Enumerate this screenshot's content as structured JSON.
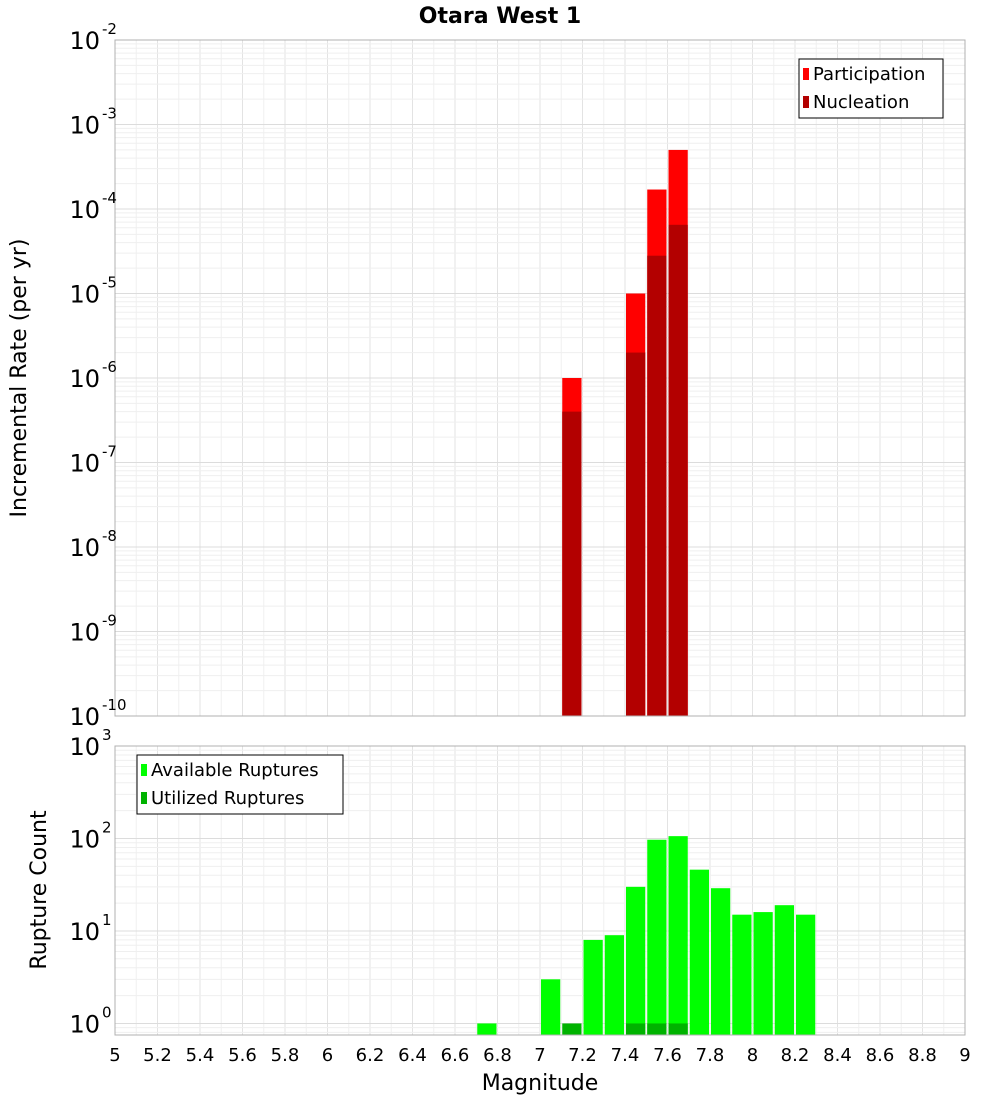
{
  "chart_data": [
    {
      "type": "bar",
      "title": "Otara West 1",
      "xlabel": "",
      "ylabel": "Incremental Rate (per yr)",
      "y_scale": "log",
      "ylim": [
        1e-10,
        0.01
      ],
      "xlim": [
        5,
        9
      ],
      "y_ticks": [
        {
          "base": "10",
          "exp": "-2"
        },
        {
          "base": "10",
          "exp": "-3"
        },
        {
          "base": "10",
          "exp": "-4"
        },
        {
          "base": "10",
          "exp": "-5"
        },
        {
          "base": "10",
          "exp": "-6"
        },
        {
          "base": "10",
          "exp": "-7"
        },
        {
          "base": "10",
          "exp": "-8"
        },
        {
          "base": "10",
          "exp": "-9"
        },
        {
          "base": "10",
          "exp": "-10"
        }
      ],
      "legend_position": "top-right",
      "grid": true,
      "bar_width": 0.1,
      "series": [
        {
          "name": "Participation",
          "color": "#ff0000",
          "x": [
            7.15,
            7.45,
            7.55,
            7.65
          ],
          "values": [
            1e-06,
            1e-05,
            0.00017,
            0.0005
          ]
        },
        {
          "name": "Nucleation",
          "color": "#b30000",
          "x": [
            7.15,
            7.45,
            7.55,
            7.65
          ],
          "values": [
            4e-07,
            2e-06,
            2.8e-05,
            6.5e-05
          ]
        }
      ]
    },
    {
      "type": "bar",
      "title": "",
      "xlabel": "Magnitude",
      "ylabel": "Rupture Count",
      "y_scale": "log",
      "ylim": [
        0.75,
        1000
      ],
      "xlim": [
        5,
        9
      ],
      "y_ticks": [
        {
          "base": "10",
          "exp": "3"
        },
        {
          "base": "10",
          "exp": "2"
        },
        {
          "base": "10",
          "exp": "1"
        },
        {
          "base": "10",
          "exp": "0"
        }
      ],
      "x_ticks": [
        "5",
        "5.2",
        "5.4",
        "5.6",
        "5.8",
        "6",
        "6.2",
        "6.4",
        "6.6",
        "6.8",
        "7",
        "7.2",
        "7.4",
        "7.6",
        "7.8",
        "8",
        "8.2",
        "8.4",
        "8.6",
        "8.8",
        "9"
      ],
      "legend_position": "top-left",
      "grid": true,
      "bar_width": 0.1,
      "series": [
        {
          "name": "Available Ruptures",
          "color": "#00ff00",
          "x": [
            6.75,
            7.05,
            7.25,
            7.35,
            7.45,
            7.55,
            7.65,
            7.75,
            7.85,
            7.95,
            8.05,
            8.15,
            8.25
          ],
          "values": [
            1,
            3,
            8,
            9,
            30,
            97,
            106,
            46,
            29,
            15,
            16,
            19,
            15
          ]
        },
        {
          "name": "Utilized Ruptures",
          "color": "#00b300",
          "x": [
            7.15,
            7.45,
            7.55,
            7.65
          ],
          "values": [
            1,
            1,
            1,
            1
          ]
        }
      ]
    }
  ]
}
